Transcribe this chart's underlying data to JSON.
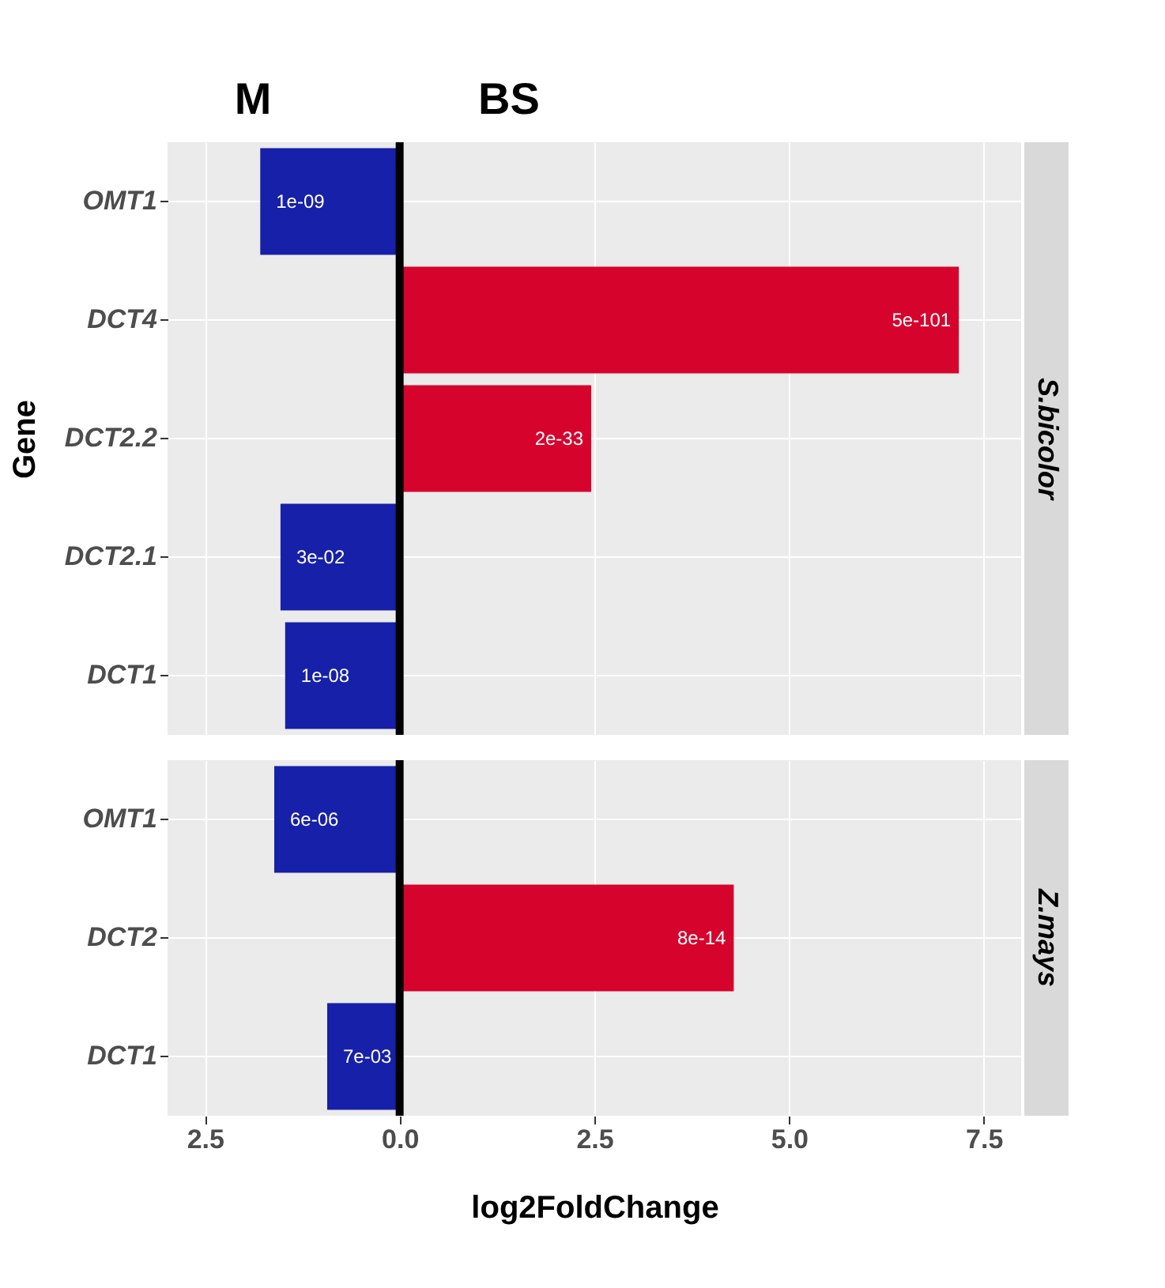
{
  "chart_data": [
    {
      "type": "bar",
      "orientation": "horizontal",
      "title": "S.bicolor",
      "ylabel": "Gene",
      "categories": [
        "OMT1",
        "DCT4",
        "DCT2.2",
        "DCT2.1",
        "DCT1"
      ],
      "values": [
        -1.79,
        7.18,
        2.46,
        -1.53,
        -1.47
      ],
      "colors": [
        "#1620a8",
        "#d6042d",
        "#d6042d",
        "#1620a8",
        "#1620a8"
      ],
      "xlim": [
        -2.98,
        7.98
      ],
      "xticks": [
        -2.5,
        0,
        2.5,
        5,
        7.5
      ],
      "tick_labels": "y",
      "grid": true,
      "ref_lines": [
        {
          "axis": "x",
          "value": 0,
          "label": null,
          "color": "#000000"
        }
      ],
      "annotations": [
        "M",
        "BS",
        {
          "text": "1e-09",
          "x": -1.79,
          "y": "OMT1"
        },
        {
          "text": "5e-101",
          "x": 7.18,
          "y": "DCT4"
        },
        {
          "text": "2e-33",
          "x": 2.46,
          "y": "DCT2.2"
        },
        {
          "text": "3e-02",
          "x": -1.53,
          "y": "DCT2.1"
        },
        {
          "text": "1e-08",
          "x": -1.47,
          "y": "DCT1"
        }
      ]
    },
    {
      "type": "bar",
      "orientation": "horizontal",
      "title": "Z.mays",
      "xlabel": "log2FoldChange",
      "categories": [
        "OMT1",
        "DCT2",
        "DCT1"
      ],
      "values": [
        -1.61,
        4.29,
        -0.93
      ],
      "colors": [
        "#1620a8",
        "#d6042d",
        "#1620a8"
      ],
      "xlim": [
        -2.98,
        7.98
      ],
      "xticks": [
        {
          "value": -2.5,
          "label": "2.5"
        },
        {
          "value": 0,
          "label": "0.0"
        },
        2.5,
        {
          "value": 5,
          "label": "5.0"
        },
        7.5
      ],
      "grid": true,
      "ref_lines": [
        {
          "axis": "x",
          "value": 0,
          "label": null,
          "color": "#000000"
        }
      ],
      "annotations": [
        {
          "text": "6e-06",
          "x": -1.61,
          "y": "OMT1"
        },
        {
          "text": "8e-14",
          "x": 4.29,
          "y": "DCT2"
        },
        {
          "text": "7e-03",
          "x": -0.93,
          "y": "DCT1"
        }
      ]
    }
  ]
}
